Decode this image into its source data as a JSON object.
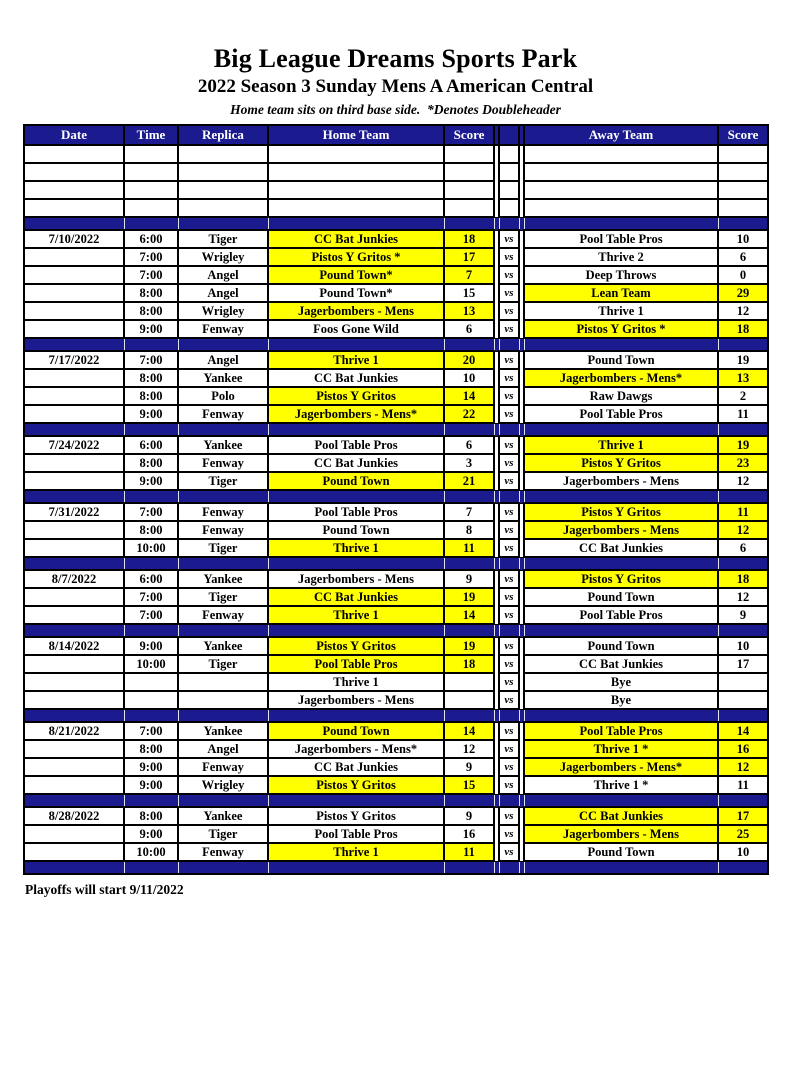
{
  "page": {
    "title": "Big League Dreams Sports Park",
    "subtitle": "2022 Season 3 Sunday Mens A American Central",
    "note": "Home team sits on third base side.  *Denotes Doubleheader",
    "footer": "Playoffs will start 9/11/2022"
  },
  "colors": {
    "navy": "#1b1b8f",
    "highlight": "#ffff00",
    "header_text": "#ffffff"
  },
  "table": {
    "vs_label": "vs",
    "empty_row_count": 4,
    "headers": {
      "date": "Date",
      "time": "Time",
      "replica": "Replica",
      "home": "Home Team",
      "home_score": "Score",
      "away": "Away Team",
      "away_score": "Score"
    },
    "groups": [
      {
        "date": "7/10/2022",
        "games": [
          {
            "time": "6:00",
            "replica": "Tiger",
            "home": "CC Bat Junkies",
            "home_score": "18",
            "home_win": true,
            "away": "Pool Table Pros",
            "away_score": "10",
            "away_win": false
          },
          {
            "time": "7:00",
            "replica": "Wrigley",
            "home": "Pistos Y Gritos *",
            "home_score": "17",
            "home_win": true,
            "away": "Thrive 2",
            "away_score": "6",
            "away_win": false
          },
          {
            "time": "7:00",
            "replica": "Angel",
            "home": "Pound Town*",
            "home_score": "7",
            "home_win": true,
            "away": "Deep Throws",
            "away_score": "0",
            "away_win": false
          },
          {
            "time": "8:00",
            "replica": "Angel",
            "home": "Pound Town*",
            "home_score": "15",
            "home_win": false,
            "away": "Lean Team",
            "away_score": "29",
            "away_win": true
          },
          {
            "time": "8:00",
            "replica": "Wrigley",
            "home": "Jagerbombers - Mens",
            "home_score": "13",
            "home_win": true,
            "away": "Thrive 1",
            "away_score": "12",
            "away_win": false
          },
          {
            "time": "9:00",
            "replica": "Fenway",
            "home": "Foos Gone Wild",
            "home_score": "6",
            "home_win": false,
            "away": "Pistos Y Gritos *",
            "away_score": "18",
            "away_win": true
          }
        ]
      },
      {
        "date": "7/17/2022",
        "games": [
          {
            "time": "7:00",
            "replica": "Angel",
            "home": "Thrive 1",
            "home_score": "20",
            "home_win": true,
            "away": "Pound Town",
            "away_score": "19",
            "away_win": false
          },
          {
            "time": "8:00",
            "replica": "Yankee",
            "home": "CC Bat Junkies",
            "home_score": "10",
            "home_win": false,
            "away": "Jagerbombers - Mens*",
            "away_score": "13",
            "away_win": true
          },
          {
            "time": "8:00",
            "replica": "Polo",
            "home": "Pistos Y Gritos",
            "home_score": "14",
            "home_win": true,
            "away": "Raw Dawgs",
            "away_score": "2",
            "away_win": false
          },
          {
            "time": "9:00",
            "replica": "Fenway",
            "home": "Jagerbombers - Mens*",
            "home_score": "22",
            "home_win": true,
            "away": "Pool Table Pros",
            "away_score": "11",
            "away_win": false
          }
        ]
      },
      {
        "date": "7/24/2022",
        "games": [
          {
            "time": "6:00",
            "replica": "Yankee",
            "home": "Pool Table Pros",
            "home_score": "6",
            "home_win": false,
            "away": "Thrive 1",
            "away_score": "19",
            "away_win": true
          },
          {
            "time": "8:00",
            "replica": "Fenway",
            "home": "CC Bat Junkies",
            "home_score": "3",
            "home_win": false,
            "away": "Pistos Y Gritos",
            "away_score": "23",
            "away_win": true
          },
          {
            "time": "9:00",
            "replica": "Tiger",
            "home": "Pound Town",
            "home_score": "21",
            "home_win": true,
            "away": "Jagerbombers - Mens",
            "away_score": "12",
            "away_win": false
          }
        ]
      },
      {
        "date": "7/31/2022",
        "games": [
          {
            "time": "7:00",
            "replica": "Fenway",
            "home": "Pool Table Pros",
            "home_score": "7",
            "home_win": false,
            "away": "Pistos Y Gritos",
            "away_score": "11",
            "away_win": true
          },
          {
            "time": "8:00",
            "replica": "Fenway",
            "home": "Pound Town",
            "home_score": "8",
            "home_win": false,
            "away": "Jagerbombers - Mens",
            "away_score": "12",
            "away_win": true
          },
          {
            "time": "10:00",
            "replica": "Tiger",
            "home": "Thrive 1",
            "home_score": "11",
            "home_win": true,
            "away": "CC Bat Junkies",
            "away_score": "6",
            "away_win": false
          }
        ]
      },
      {
        "date": "8/7/2022",
        "games": [
          {
            "time": "6:00",
            "replica": "Yankee",
            "home": "Jagerbombers - Mens",
            "home_score": "9",
            "home_win": false,
            "away": "Pistos Y Gritos",
            "away_score": "18",
            "away_win": true
          },
          {
            "time": "7:00",
            "replica": "Tiger",
            "home": "CC Bat Junkies",
            "home_score": "19",
            "home_win": true,
            "away": "Pound Town",
            "away_score": "12",
            "away_win": false
          },
          {
            "time": "7:00",
            "replica": "Fenway",
            "home": "Thrive 1",
            "home_score": "14",
            "home_win": true,
            "away": "Pool Table Pros",
            "away_score": "9",
            "away_win": false
          }
        ]
      },
      {
        "date": "8/14/2022",
        "games": [
          {
            "time": "9:00",
            "replica": "Yankee",
            "home": "Pistos Y Gritos",
            "home_score": "19",
            "home_win": true,
            "away": "Pound Town",
            "away_score": "10",
            "away_win": false
          },
          {
            "time": "10:00",
            "replica": "Tiger",
            "home": "Pool Table Pros",
            "home_score": "18",
            "home_win": true,
            "away": "CC Bat Junkies",
            "away_score": "17",
            "away_win": false
          },
          {
            "time": "",
            "replica": "",
            "home": "Thrive 1",
            "home_score": "",
            "home_win": false,
            "away": "Bye",
            "away_score": "",
            "away_win": false
          },
          {
            "time": "",
            "replica": "",
            "home": "Jagerbombers - Mens",
            "home_score": "",
            "home_win": false,
            "away": "Bye",
            "away_score": "",
            "away_win": false
          }
        ]
      },
      {
        "date": "8/21/2022",
        "games": [
          {
            "time": "7:00",
            "replica": "Yankee",
            "home": "Pound Town",
            "home_score": "14",
            "home_win": true,
            "away": "Pool Table Pros",
            "away_score": "14",
            "away_win": true
          },
          {
            "time": "8:00",
            "replica": "Angel",
            "home": "Jagerbombers - Mens*",
            "home_score": "12",
            "home_win": false,
            "away": "Thrive 1 *",
            "away_score": "16",
            "away_win": true
          },
          {
            "time": "9:00",
            "replica": "Fenway",
            "home": "CC Bat Junkies",
            "home_score": "9",
            "home_win": false,
            "away": "Jagerbombers - Mens*",
            "away_score": "12",
            "away_win": true
          },
          {
            "time": "9:00",
            "replica": "Wrigley",
            "home": "Pistos Y Gritos",
            "home_score": "15",
            "home_win": true,
            "away": "Thrive 1 *",
            "away_score": "11",
            "away_win": false
          }
        ]
      },
      {
        "date": "8/28/2022",
        "games": [
          {
            "time": "8:00",
            "replica": "Yankee",
            "home": "Pistos Y Gritos",
            "home_score": "9",
            "home_win": false,
            "away": "CC Bat Junkies",
            "away_score": "17",
            "away_win": true
          },
          {
            "time": "9:00",
            "replica": "Tiger",
            "home": "Pool Table Pros",
            "home_score": "16",
            "home_win": false,
            "away": "Jagerbombers - Mens",
            "away_score": "25",
            "away_win": true
          },
          {
            "time": "10:00",
            "replica": "Fenway",
            "home": "Thrive 1",
            "home_score": "11",
            "home_win": true,
            "away": "Pound Town",
            "away_score": "10",
            "away_win": false
          }
        ]
      }
    ]
  }
}
